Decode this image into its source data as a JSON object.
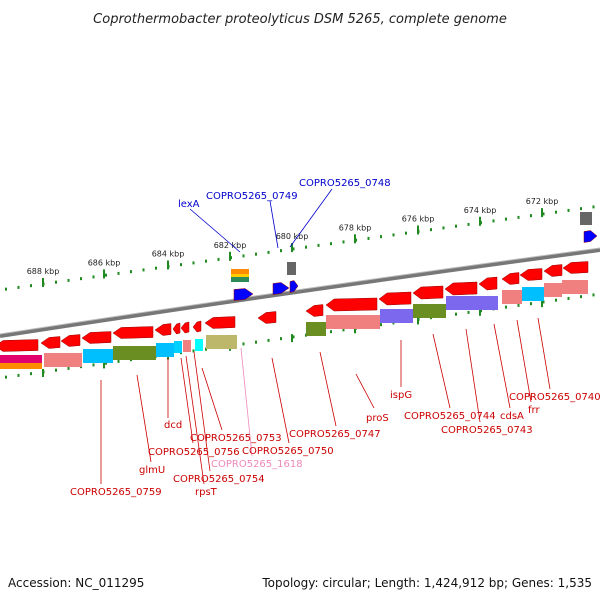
{
  "title": "Coprothermobacter proteolyticus DSM 5265, complete genome",
  "footer": {
    "accession": "Accession: NC_011295",
    "summary": "Topology: circular; Length: 1,424,912 bp; Genes: 1,535"
  },
  "colors": {
    "forward_gene": "#ff0000",
    "reverse_gene": "#e00000",
    "backbone": "#888888",
    "tick": "#1f8a1f",
    "label_red": "#cc0000",
    "label_blue": "#0000cc",
    "label_pink": "#ee88bb",
    "cds_pink": "#f08080",
    "cds_blue": "#00bfff",
    "cds_olive": "#6b8e23",
    "cds_purple": "#7b68ee",
    "cds_khaki": "#bdb76b",
    "regulatory_blue": "#0000ff",
    "regulatory_gray": "#666666"
  },
  "axis": {
    "unit": "kbp",
    "ticks": [
      "688 kbp",
      "686 kbp",
      "684 kbp",
      "682 kbp",
      "680 kbp",
      "678 kbp",
      "676 kbp",
      "674 kbp",
      "672 kbp"
    ]
  },
  "labels_top": [
    "lexA",
    "COPRO5265_0749",
    "COPRO5265_0748"
  ],
  "labels_bottom": [
    "COPRO5265_0759",
    "glmU",
    "dcd",
    "COPRO5265_0756",
    "rpsT",
    "COPRO5265_0754",
    "COPRO5265_0753",
    "COPRO5265_1618",
    "COPRO5265_0750",
    "COPRO5265_0747",
    "proS",
    "ispG",
    "COPRO5265_0744",
    "COPRO5265_0743",
    "cdsA",
    "frr",
    "COPRO5265_0740"
  ]
}
